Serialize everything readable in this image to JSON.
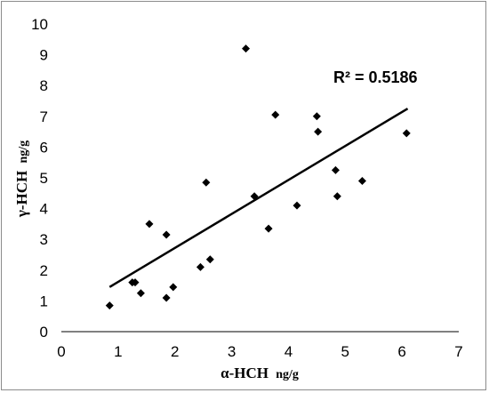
{
  "chart_data": {
    "type": "scatter",
    "xlabel": "α-HCH",
    "xlabel_unit": "ng/g",
    "ylabel": "γ-HCH",
    "ylabel_unit": "ng/g",
    "xlim": [
      0,
      7
    ],
    "ylim": [
      0,
      10
    ],
    "xticks": [
      "0",
      "1",
      "2",
      "3",
      "4",
      "5",
      "6",
      "7"
    ],
    "yticks": [
      "0",
      "1",
      "2",
      "3",
      "4",
      "5",
      "6",
      "7",
      "8",
      "9",
      "10"
    ],
    "grid": false,
    "marker_color": "#000000",
    "annotation": "R² = 0.5186",
    "trendline": {
      "type": "linear",
      "x": [
        0.85,
        6.1
      ],
      "y": [
        1.45,
        7.25
      ]
    },
    "points": [
      {
        "x": 0.85,
        "y": 0.85
      },
      {
        "x": 1.25,
        "y": 1.6
      },
      {
        "x": 1.3,
        "y": 1.6
      },
      {
        "x": 1.4,
        "y": 1.25
      },
      {
        "x": 1.55,
        "y": 3.5
      },
      {
        "x": 1.85,
        "y": 1.1
      },
      {
        "x": 1.85,
        "y": 3.15
      },
      {
        "x": 1.97,
        "y": 1.45
      },
      {
        "x": 2.45,
        "y": 2.1
      },
      {
        "x": 2.55,
        "y": 4.85
      },
      {
        "x": 2.62,
        "y": 2.35
      },
      {
        "x": 3.25,
        "y": 9.2
      },
      {
        "x": 3.4,
        "y": 4.4
      },
      {
        "x": 3.65,
        "y": 3.35
      },
      {
        "x": 3.77,
        "y": 7.05
      },
      {
        "x": 4.15,
        "y": 4.1
      },
      {
        "x": 4.5,
        "y": 7.0
      },
      {
        "x": 4.52,
        "y": 6.5
      },
      {
        "x": 4.83,
        "y": 5.25
      },
      {
        "x": 4.86,
        "y": 4.4
      },
      {
        "x": 5.3,
        "y": 4.9
      },
      {
        "x": 6.08,
        "y": 6.45
      }
    ]
  }
}
